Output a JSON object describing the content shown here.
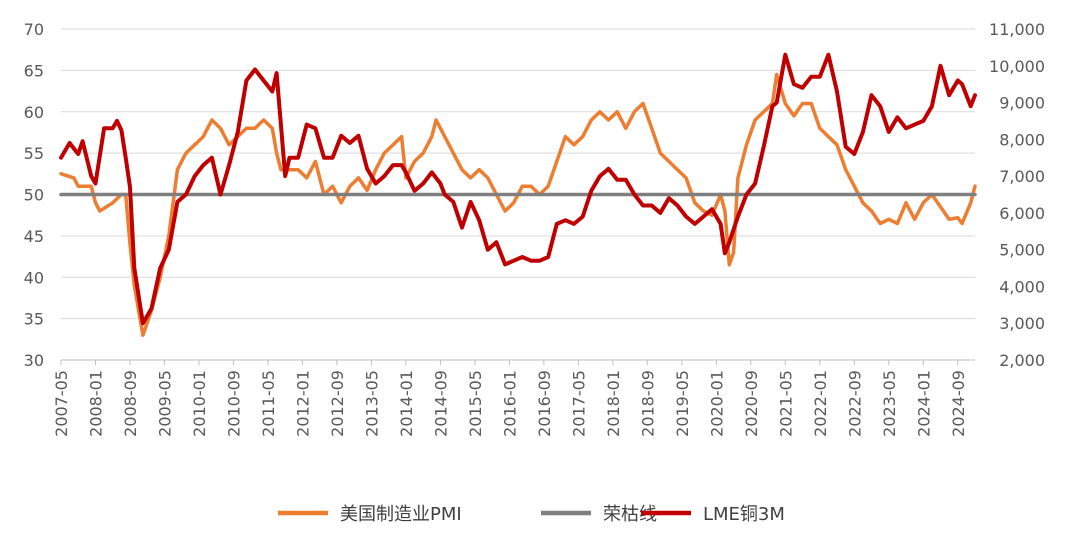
{
  "chart_data": {
    "type": "line",
    "title": "",
    "legend_position": "bottom",
    "left_axis": {
      "ylim": [
        30,
        70
      ],
      "ticks": [
        "30",
        "35",
        "40",
        "45",
        "50",
        "55",
        "60",
        "65",
        "70"
      ]
    },
    "right_axis": {
      "ylim": [
        2000,
        11000
      ],
      "ticks": [
        "2,000",
        "3,000",
        "4,000",
        "5,000",
        "6,000",
        "7,000",
        "8,000",
        "9,000",
        "10,000",
        "11,000"
      ]
    },
    "x_range": [
      "2007-05",
      "2025-01"
    ],
    "x_ticks": [
      "2007-05",
      "2008-01",
      "2008-09",
      "2009-05",
      "2010-01",
      "2010-09",
      "2011-05",
      "2012-01",
      "2012-09",
      "2013-05",
      "2014-01",
      "2014-09",
      "2015-05",
      "2016-01",
      "2016-09",
      "2017-05",
      "2018-01",
      "2018-09",
      "2019-05",
      "2020-01",
      "2020-09",
      "2021-05",
      "2022-01",
      "2022-09",
      "2023-05",
      "2024-01",
      "2024-09"
    ],
    "series": [
      {
        "name": "美国制造业PMI",
        "axis": "left",
        "color": "#ED7D31",
        "points": [
          [
            "2007-05",
            52.5
          ],
          [
            "2007-08",
            52
          ],
          [
            "2007-09",
            51
          ],
          [
            "2007-12",
            51
          ],
          [
            "2008-01",
            49
          ],
          [
            "2008-02",
            48
          ],
          [
            "2008-05",
            49
          ],
          [
            "2008-07",
            50
          ],
          [
            "2008-08",
            50
          ],
          [
            "2008-09",
            44
          ],
          [
            "2008-10",
            39
          ],
          [
            "2008-12",
            33
          ],
          [
            "2009-02",
            36
          ],
          [
            "2009-04",
            40
          ],
          [
            "2009-06",
            45
          ],
          [
            "2009-08",
            53
          ],
          [
            "2009-10",
            55
          ],
          [
            "2009-12",
            56
          ],
          [
            "2010-02",
            57
          ],
          [
            "2010-04",
            59
          ],
          [
            "2010-06",
            58
          ],
          [
            "2010-08",
            56
          ],
          [
            "2010-10",
            57
          ],
          [
            "2010-12",
            58
          ],
          [
            "2011-02",
            58
          ],
          [
            "2011-04",
            59
          ],
          [
            "2011-06",
            58
          ],
          [
            "2011-07",
            55
          ],
          [
            "2011-08",
            53
          ],
          [
            "2011-10",
            53
          ],
          [
            "2011-12",
            53
          ],
          [
            "2012-02",
            52
          ],
          [
            "2012-04",
            54
          ],
          [
            "2012-06",
            50
          ],
          [
            "2012-08",
            51
          ],
          [
            "2012-10",
            49
          ],
          [
            "2012-12",
            51
          ],
          [
            "2013-02",
            52
          ],
          [
            "2013-04",
            50.5
          ],
          [
            "2013-06",
            53
          ],
          [
            "2013-08",
            55
          ],
          [
            "2013-10",
            56
          ],
          [
            "2013-12",
            57
          ],
          [
            "2014-01",
            52
          ],
          [
            "2014-03",
            54
          ],
          [
            "2014-05",
            55
          ],
          [
            "2014-07",
            57
          ],
          [
            "2014-08",
            59
          ],
          [
            "2014-10",
            57
          ],
          [
            "2014-12",
            55
          ],
          [
            "2015-02",
            53
          ],
          [
            "2015-04",
            52
          ],
          [
            "2015-06",
            53
          ],
          [
            "2015-08",
            52
          ],
          [
            "2015-10",
            50
          ],
          [
            "2015-12",
            48
          ],
          [
            "2016-02",
            49
          ],
          [
            "2016-04",
            51
          ],
          [
            "2016-06",
            51
          ],
          [
            "2016-08",
            50
          ],
          [
            "2016-10",
            51
          ],
          [
            "2016-12",
            54
          ],
          [
            "2017-02",
            57
          ],
          [
            "2017-04",
            56
          ],
          [
            "2017-06",
            57
          ],
          [
            "2017-08",
            59
          ],
          [
            "2017-10",
            60
          ],
          [
            "2017-12",
            59
          ],
          [
            "2018-02",
            60
          ],
          [
            "2018-04",
            58
          ],
          [
            "2018-06",
            60
          ],
          [
            "2018-08",
            61
          ],
          [
            "2018-10",
            58
          ],
          [
            "2018-12",
            55
          ],
          [
            "2019-02",
            54
          ],
          [
            "2019-04",
            53
          ],
          [
            "2019-06",
            52
          ],
          [
            "2019-08",
            49
          ],
          [
            "2019-10",
            48
          ],
          [
            "2019-12",
            47.5
          ],
          [
            "2020-02",
            50
          ],
          [
            "2020-03",
            48
          ],
          [
            "2020-04",
            41.5
          ],
          [
            "2020-05",
            43
          ],
          [
            "2020-06",
            52
          ],
          [
            "2020-08",
            56
          ],
          [
            "2020-10",
            59
          ],
          [
            "2020-12",
            60
          ],
          [
            "2021-02",
            61
          ],
          [
            "2021-03",
            64.5
          ],
          [
            "2021-05",
            61
          ],
          [
            "2021-07",
            59.5
          ],
          [
            "2021-09",
            61
          ],
          [
            "2021-11",
            61
          ],
          [
            "2022-01",
            58
          ],
          [
            "2022-03",
            57
          ],
          [
            "2022-05",
            56
          ],
          [
            "2022-07",
            53
          ],
          [
            "2022-09",
            51
          ],
          [
            "2022-11",
            49
          ],
          [
            "2023-01",
            48
          ],
          [
            "2023-03",
            46.5
          ],
          [
            "2023-05",
            47
          ],
          [
            "2023-07",
            46.5
          ],
          [
            "2023-09",
            49
          ],
          [
            "2023-11",
            47
          ],
          [
            "2024-01",
            49
          ],
          [
            "2024-03",
            50
          ],
          [
            "2024-05",
            48.5
          ],
          [
            "2024-07",
            47
          ],
          [
            "2024-09",
            47.2
          ],
          [
            "2024-10",
            46.5
          ],
          [
            "2024-12",
            49
          ],
          [
            "2025-01",
            51
          ]
        ]
      },
      {
        "name": "荣枯线",
        "axis": "left",
        "color": "#7F7F7F",
        "points": [
          [
            "2007-05",
            50
          ],
          [
            "2025-01",
            50
          ]
        ]
      },
      {
        "name": "LME铜3M",
        "axis": "right",
        "color": "#C00000",
        "points": [
          [
            "2007-05",
            7500
          ],
          [
            "2007-07",
            7900
          ],
          [
            "2007-09",
            7600
          ],
          [
            "2007-10",
            7950
          ],
          [
            "2007-12",
            7000
          ],
          [
            "2008-01",
            6800
          ],
          [
            "2008-03",
            8300
          ],
          [
            "2008-05",
            8300
          ],
          [
            "2008-06",
            8500
          ],
          [
            "2008-07",
            8250
          ],
          [
            "2008-08",
            7500
          ],
          [
            "2008-09",
            6700
          ],
          [
            "2008-10",
            4500
          ],
          [
            "2008-12",
            3000
          ],
          [
            "2009-02",
            3400
          ],
          [
            "2009-04",
            4500
          ],
          [
            "2009-06",
            5000
          ],
          [
            "2009-08",
            6300
          ],
          [
            "2009-10",
            6500
          ],
          [
            "2009-12",
            7000
          ],
          [
            "2010-02",
            7300
          ],
          [
            "2010-04",
            7500
          ],
          [
            "2010-06",
            6500
          ],
          [
            "2010-08",
            7300
          ],
          [
            "2010-10",
            8200
          ],
          [
            "2010-12",
            9600
          ],
          [
            "2011-02",
            9900
          ],
          [
            "2011-04",
            9600
          ],
          [
            "2011-06",
            9300
          ],
          [
            "2011-07",
            9800
          ],
          [
            "2011-09",
            7000
          ],
          [
            "2011-10",
            7500
          ],
          [
            "2011-12",
            7500
          ],
          [
            "2012-02",
            8400
          ],
          [
            "2012-04",
            8300
          ],
          [
            "2012-06",
            7500
          ],
          [
            "2012-08",
            7500
          ],
          [
            "2012-10",
            8100
          ],
          [
            "2012-12",
            7900
          ],
          [
            "2013-02",
            8100
          ],
          [
            "2013-04",
            7200
          ],
          [
            "2013-06",
            6800
          ],
          [
            "2013-08",
            7000
          ],
          [
            "2013-10",
            7300
          ],
          [
            "2013-12",
            7300
          ],
          [
            "2014-01",
            7100
          ],
          [
            "2014-03",
            6600
          ],
          [
            "2014-05",
            6800
          ],
          [
            "2014-07",
            7100
          ],
          [
            "2014-09",
            6800
          ],
          [
            "2014-10",
            6500
          ],
          [
            "2014-12",
            6300
          ],
          [
            "2015-02",
            5600
          ],
          [
            "2015-04",
            6300
          ],
          [
            "2015-06",
            5800
          ],
          [
            "2015-08",
            5000
          ],
          [
            "2015-10",
            5200
          ],
          [
            "2015-12",
            4600
          ],
          [
            "2016-02",
            4700
          ],
          [
            "2016-04",
            4800
          ],
          [
            "2016-06",
            4700
          ],
          [
            "2016-08",
            4700
          ],
          [
            "2016-10",
            4800
          ],
          [
            "2016-12",
            5700
          ],
          [
            "2017-02",
            5800
          ],
          [
            "2017-04",
            5700
          ],
          [
            "2017-06",
            5900
          ],
          [
            "2017-08",
            6600
          ],
          [
            "2017-10",
            7000
          ],
          [
            "2017-12",
            7200
          ],
          [
            "2018-02",
            6900
          ],
          [
            "2018-04",
            6900
          ],
          [
            "2018-06",
            6500
          ],
          [
            "2018-08",
            6200
          ],
          [
            "2018-10",
            6200
          ],
          [
            "2018-12",
            6000
          ],
          [
            "2019-02",
            6400
          ],
          [
            "2019-04",
            6200
          ],
          [
            "2019-06",
            5900
          ],
          [
            "2019-08",
            5700
          ],
          [
            "2019-10",
            5900
          ],
          [
            "2019-12",
            6100
          ],
          [
            "2020-02",
            5700
          ],
          [
            "2020-03",
            4900
          ],
          [
            "2020-04",
            5200
          ],
          [
            "2020-06",
            5900
          ],
          [
            "2020-08",
            6500
          ],
          [
            "2020-10",
            6800
          ],
          [
            "2020-12",
            7800
          ],
          [
            "2021-02",
            8900
          ],
          [
            "2021-03",
            9000
          ],
          [
            "2021-05",
            10300
          ],
          [
            "2021-07",
            9500
          ],
          [
            "2021-09",
            9400
          ],
          [
            "2021-11",
            9700
          ],
          [
            "2022-01",
            9700
          ],
          [
            "2022-03",
            10300
          ],
          [
            "2022-05",
            9300
          ],
          [
            "2022-07",
            7800
          ],
          [
            "2022-09",
            7600
          ],
          [
            "2022-11",
            8200
          ],
          [
            "2023-01",
            9200
          ],
          [
            "2023-03",
            8900
          ],
          [
            "2023-05",
            8200
          ],
          [
            "2023-07",
            8600
          ],
          [
            "2023-09",
            8300
          ],
          [
            "2023-11",
            8400
          ],
          [
            "2024-01",
            8500
          ],
          [
            "2024-03",
            8900
          ],
          [
            "2024-05",
            10000
          ],
          [
            "2024-07",
            9200
          ],
          [
            "2024-09",
            9600
          ],
          [
            "2024-10",
            9500
          ],
          [
            "2024-12",
            8900
          ],
          [
            "2025-01",
            9200
          ]
        ]
      }
    ]
  }
}
